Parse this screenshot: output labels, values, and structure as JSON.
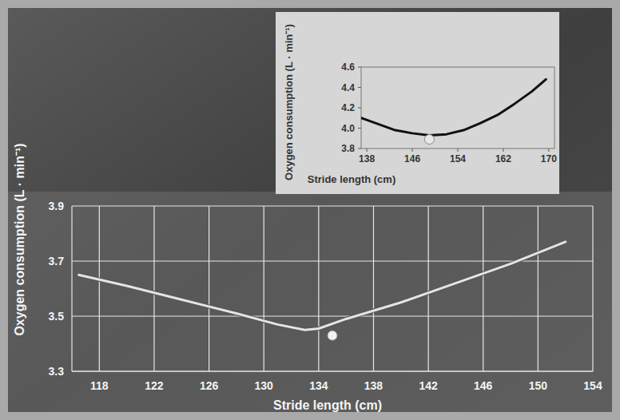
{
  "chart_data": [
    {
      "type": "line",
      "x_label": "Stride length (cm)",
      "y_label": "Oxygen consumption (L · min⁻¹)",
      "xlim": [
        116,
        154
      ],
      "ylim": [
        3.3,
        3.9
      ],
      "xticks": [
        118,
        122,
        126,
        130,
        134,
        138,
        142,
        146,
        150,
        154
      ],
      "yticks": [
        3.3,
        3.5,
        3.7,
        3.9
      ],
      "grid": true,
      "series": [
        {
          "type": "line",
          "color": "#e4e4e4",
          "x": [
            116.5,
            120,
            124,
            128,
            131,
            133,
            134,
            136,
            140,
            144,
            148,
            152
          ],
          "values": [
            3.65,
            3.61,
            3.56,
            3.51,
            3.47,
            3.45,
            3.455,
            3.49,
            3.55,
            3.62,
            3.69,
            3.77
          ]
        },
        {
          "type": "scatter",
          "color": "#f2f2f2",
          "marker": "circle",
          "x": [
            135
          ],
          "values": [
            3.43
          ]
        }
      ]
    },
    {
      "type": "line",
      "x_label": "Stride length (cm)",
      "y_label": "Oxygen consumption (L · min⁻¹)",
      "xlim": [
        137,
        171
      ],
      "ylim": [
        3.8,
        4.6
      ],
      "xticks": [
        138,
        146,
        154,
        162,
        170
      ],
      "yticks": [
        3.8,
        {
          "value": 4,
          "label": "4.0"
        },
        4.2,
        4.4,
        4.6
      ],
      "grid": false,
      "series": [
        {
          "type": "line",
          "color": "#111111",
          "x": [
            137,
            140,
            143,
            146,
            149,
            152,
            155,
            158,
            161,
            164,
            167,
            169.5
          ],
          "values": [
            4.1,
            4.04,
            3.98,
            3.95,
            3.93,
            3.94,
            3.98,
            4.05,
            4.13,
            4.24,
            4.36,
            4.48
          ]
        },
        {
          "type": "scatter",
          "color": "#e8e8e8",
          "marker": "circle",
          "x": [
            149
          ],
          "values": [
            3.89
          ]
        }
      ]
    }
  ]
}
